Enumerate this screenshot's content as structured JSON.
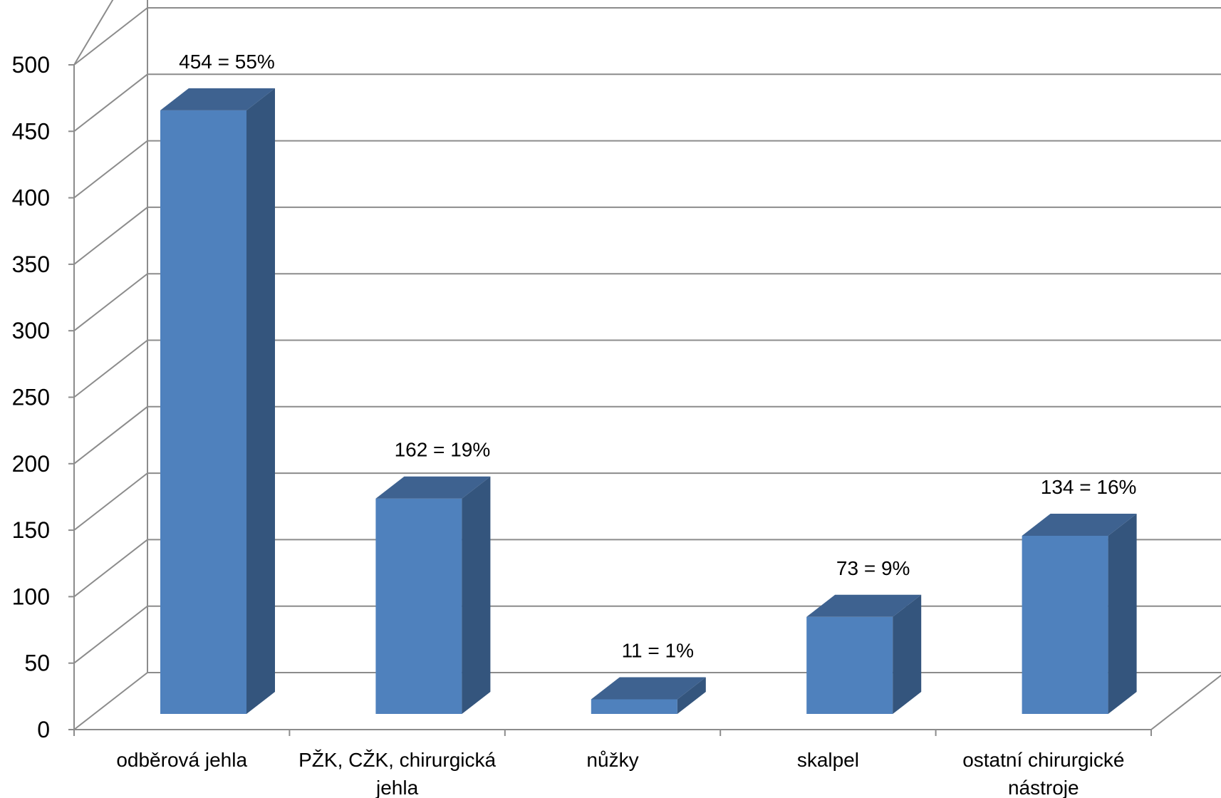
{
  "chart_data": {
    "type": "bar",
    "style": "3d-column",
    "categories": [
      [
        "odběrová jehla"
      ],
      [
        "PŽK, CŽK, chirurgická",
        "jehla"
      ],
      [
        "nůžky"
      ],
      [
        "skalpel"
      ],
      [
        "ostatní chirurgické",
        "nástroje"
      ]
    ],
    "values": [
      454,
      162,
      11,
      73,
      134
    ],
    "data_labels": [
      "454 = 55%",
      "162 = 19%",
      "11 = 1%",
      "73 = 9%",
      "134 = 16%"
    ],
    "ylim": [
      0,
      500
    ],
    "yticks": [
      0,
      50,
      100,
      150,
      200,
      250,
      300,
      350,
      400,
      450,
      500
    ],
    "grid": true,
    "legend": "none",
    "title": "",
    "xlabel": "",
    "ylabel": ""
  },
  "colors": {
    "bar_front": "#4F81BD",
    "bar_side": "#34557D",
    "bar_top": "#3E6290",
    "grid": "#8C8C8C",
    "axis": "#8C8C8C"
  }
}
